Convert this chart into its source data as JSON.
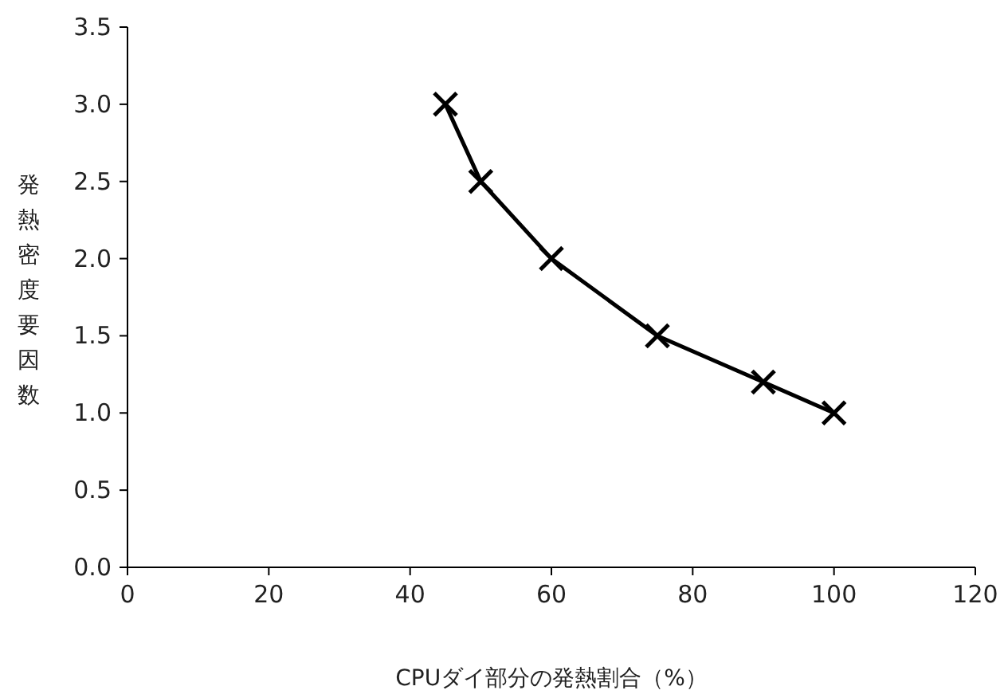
{
  "chart_data": {
    "type": "line",
    "xlabel": "CPUダイ部分の発熱割合（%）",
    "ylabel": "発熱密度要因数",
    "x": [
      45,
      50,
      60,
      75,
      90,
      100
    ],
    "series": [
      {
        "color": "#000000",
        "values": [
          3.0,
          2.5,
          2.0,
          1.5,
          1.2,
          1.0
        ]
      }
    ],
    "xlim": [
      0,
      120
    ],
    "xticks": [
      0,
      20,
      40,
      60,
      80,
      100,
      120
    ],
    "ylim": [
      0,
      3.5
    ],
    "yticks": [
      {
        "value": 0,
        "label": "0.0"
      },
      {
        "value": 0.5,
        "label": "0.5"
      },
      {
        "value": 1,
        "label": "1.0"
      },
      {
        "value": 1.5,
        "label": "1.5"
      },
      {
        "value": 2,
        "label": "2.0"
      },
      {
        "value": 2.5,
        "label": "2.5"
      },
      {
        "value": 3,
        "label": "3.0"
      },
      {
        "value": 3.5,
        "label": "3.5"
      }
    ],
    "marker": "cross",
    "line_style": "solid",
    "grid": false
  }
}
